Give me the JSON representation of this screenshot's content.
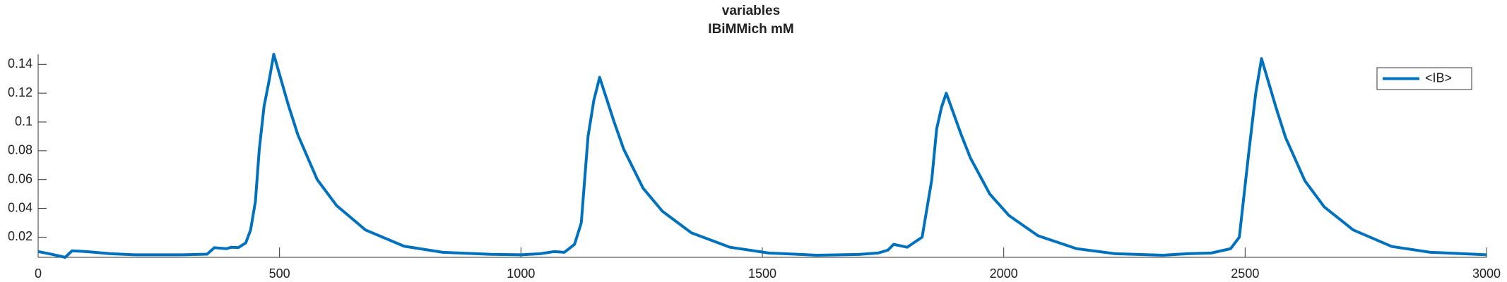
{
  "chart_data": {
    "type": "line",
    "title": "variables",
    "subtitle": "IBiMMich mM",
    "x": [
      0,
      30,
      56,
      70,
      100,
      150,
      200,
      300,
      350,
      365,
      390,
      400,
      415,
      430,
      440,
      450,
      458,
      468,
      478,
      488,
      518,
      538,
      578,
      618,
      678,
      758,
      838,
      938,
      1000,
      1040,
      1069,
      1090,
      1111,
      1125,
      1139,
      1151,
      1163,
      1193,
      1213,
      1253,
      1293,
      1353,
      1433,
      1513,
      1613,
      1700,
      1740,
      1760,
      1772,
      1800,
      1831,
      1851,
      1861,
      1871,
      1881,
      1911,
      1931,
      1971,
      2011,
      2071,
      2151,
      2231,
      2331,
      2380,
      2430,
      2470,
      2488,
      2508,
      2522,
      2534,
      2564,
      2584,
      2624,
      2664,
      2724,
      2804,
      2884,
      3000
    ],
    "series": [
      {
        "name": "<IB>",
        "color": "#0072bd",
        "values": [
          0.01,
          0.008,
          0.006,
          0.0105,
          0.01,
          0.0085,
          0.0078,
          0.0078,
          0.0082,
          0.0127,
          0.012,
          0.013,
          0.0128,
          0.016,
          0.025,
          0.0447,
          0.081,
          0.111,
          0.128,
          0.147,
          0.112,
          0.091,
          0.06,
          0.042,
          0.025,
          0.0137,
          0.0095,
          0.0081,
          0.0078,
          0.0085,
          0.01,
          0.0095,
          0.015,
          0.03,
          0.09,
          0.115,
          0.131,
          0.1,
          0.081,
          0.054,
          0.038,
          0.023,
          0.013,
          0.009,
          0.0075,
          0.008,
          0.009,
          0.011,
          0.015,
          0.013,
          0.02,
          0.06,
          0.095,
          0.11,
          0.12,
          0.092,
          0.075,
          0.05,
          0.035,
          0.021,
          0.012,
          0.0085,
          0.0075,
          0.0085,
          0.009,
          0.012,
          0.02,
          0.08,
          0.12,
          0.144,
          0.11,
          0.089,
          0.059,
          0.041,
          0.025,
          0.0135,
          0.0095,
          0.0078
        ]
      }
    ],
    "xlim": [
      0,
      3000
    ],
    "xticks": [
      0,
      500,
      1000,
      1500,
      2000,
      2500,
      3000
    ],
    "ylim": [
      0.006,
      0.147
    ],
    "yticks": [
      0.02,
      0.04,
      0.06,
      0.08,
      0.1,
      0.12,
      0.14
    ],
    "legend": "upper right"
  }
}
